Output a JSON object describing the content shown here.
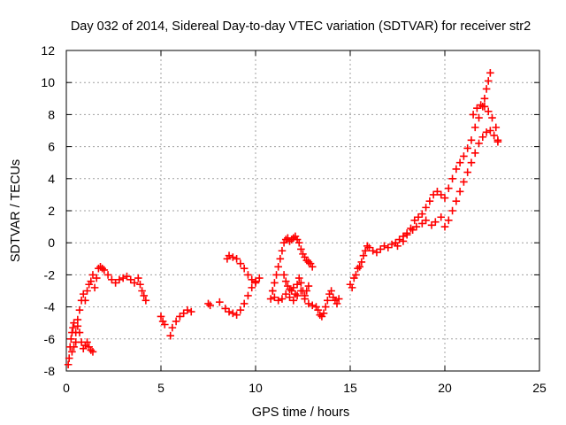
{
  "chart_data": {
    "type": "scatter",
    "title": "Day 032 of 2014, Sidereal Day-to-day VTEC variation (SDTVAR) for receiver str2",
    "xlabel": "GPS time / hours",
    "ylabel": "SDTVAR / TECUs",
    "xlim": [
      0,
      25
    ],
    "ylim": [
      -8,
      12
    ],
    "xticks": [
      "0",
      "5",
      "10",
      "15",
      "20",
      "25"
    ],
    "yticks": [
      "-8",
      "-6",
      "-4",
      "-2",
      "0",
      "2",
      "4",
      "6",
      "8",
      "10",
      "12"
    ],
    "grid": true,
    "marker": "+",
    "series": [
      {
        "name": "SDTVAR",
        "color": "#ff0000",
        "x": [
          0.1,
          0.15,
          0.2,
          0.25,
          0.3,
          0.35,
          0.4,
          0.5,
          0.6,
          0.7,
          0.8,
          0.9,
          1.0,
          1.1,
          1.2,
          1.3,
          1.4,
          1.5,
          1.6,
          1.7,
          1.8,
          1.9,
          2.0,
          2.2,
          2.4,
          2.6,
          2.8,
          3.0,
          3.2,
          3.4,
          3.6,
          3.8,
          3.9,
          4.0,
          4.1,
          4.2,
          0.6,
          0.7,
          0.8,
          0.9,
          1.0,
          1.1,
          1.2,
          1.3,
          1.4,
          0.3,
          0.4,
          0.5,
          5.0,
          5.1,
          5.2,
          5.5,
          5.6,
          5.8,
          6.0,
          6.2,
          6.4,
          6.6,
          7.5,
          7.6,
          8.1,
          8.4,
          8.6,
          8.8,
          9.0,
          9.2,
          9.4,
          9.6,
          9.8,
          10.0,
          10.2,
          8.5,
          8.6,
          8.8,
          9.0,
          9.2,
          9.4,
          9.6,
          9.8,
          10.0,
          10.8,
          10.9,
          11.0,
          11.1,
          11.2,
          11.3,
          11.4,
          11.5,
          11.6,
          11.7,
          11.8,
          11.9,
          12.0,
          12.1,
          12.2,
          12.3,
          12.4,
          12.5,
          12.6,
          12.7,
          12.8,
          12.9,
          13.0,
          10.9,
          11.0,
          11.2,
          11.4,
          11.6,
          11.8,
          12.0,
          12.2,
          12.4,
          12.6,
          12.8,
          13.0,
          13.2,
          11.5,
          11.6,
          11.7,
          11.8,
          11.9,
          12.0,
          12.1,
          12.2,
          12.3,
          12.4,
          12.5,
          12.6,
          12.7,
          12.8,
          13.3,
          13.4,
          13.5,
          13.6,
          13.7,
          13.8,
          13.9,
          14.0,
          14.1,
          14.2,
          14.3,
          14.4,
          15.0,
          15.1,
          15.2,
          15.3,
          15.4,
          15.5,
          15.6,
          15.7,
          15.8,
          15.9,
          16.0,
          16.2,
          16.4,
          16.6,
          16.8,
          17.0,
          17.2,
          17.4,
          17.6,
          17.8,
          18.0,
          18.2,
          18.4,
          18.6,
          18.8,
          19.0,
          19.2,
          19.4,
          19.6,
          19.8,
          20.0,
          20.2,
          20.4,
          20.6,
          20.8,
          21.0,
          21.2,
          21.4,
          21.6,
          21.8,
          22.0,
          22.1,
          22.2,
          22.3,
          22.4,
          17.5,
          17.8,
          18.0,
          18.3,
          18.5,
          18.8,
          19.0,
          19.3,
          19.5,
          19.8,
          20.0,
          20.2,
          20.4,
          20.6,
          20.8,
          21.0,
          21.2,
          21.4,
          21.6,
          21.8,
          22.0,
          22.2,
          22.4,
          22.6,
          22.8,
          21.5,
          21.7,
          21.9,
          22.1,
          22.3,
          22.5,
          22.7,
          22.8
        ],
        "y": [
          -7.6,
          -7.2,
          -6.5,
          -6.0,
          -5.6,
          -5.3,
          -5.0,
          -5.6,
          -4.8,
          -4.2,
          -3.6,
          -3.2,
          -3.6,
          -3.0,
          -2.6,
          -2.4,
          -2.0,
          -2.8,
          -2.2,
          -1.6,
          -1.5,
          -1.6,
          -1.7,
          -2.0,
          -2.3,
          -2.5,
          -2.3,
          -2.2,
          -2.1,
          -2.3,
          -2.5,
          -2.2,
          -2.6,
          -3.0,
          -3.3,
          -3.6,
          -5.2,
          -5.6,
          -6.2,
          -6.6,
          -6.4,
          -6.2,
          -6.5,
          -6.7,
          -6.8,
          -6.8,
          -6.5,
          -6.2,
          -4.6,
          -4.9,
          -5.1,
          -5.8,
          -5.3,
          -4.9,
          -4.6,
          -4.4,
          -4.2,
          -4.3,
          -3.8,
          -3.9,
          -3.7,
          -4.1,
          -4.3,
          -4.4,
          -4.5,
          -4.2,
          -3.8,
          -3.3,
          -2.8,
          -2.4,
          -2.2,
          -1.0,
          -0.8,
          -0.9,
          -1.0,
          -1.3,
          -1.6,
          -2.0,
          -2.3,
          -2.5,
          -3.5,
          -3.0,
          -2.5,
          -2.0,
          -1.5,
          -1.0,
          -0.5,
          0.0,
          0.2,
          0.3,
          0.1,
          0.2,
          0.3,
          0.4,
          0.2,
          0.0,
          -0.4,
          -0.7,
          -0.9,
          -1.1,
          -1.2,
          -1.3,
          -1.5,
          -3.0,
          -3.4,
          -3.6,
          -3.5,
          -3.2,
          -3.4,
          -3.6,
          -3.3,
          -3.0,
          -3.5,
          -3.8,
          -3.9,
          -4.0,
          -2.0,
          -2.4,
          -2.7,
          -2.9,
          -3.0,
          -2.8,
          -3.2,
          -2.6,
          -2.2,
          -2.5,
          -3.0,
          -3.3,
          -3.0,
          -2.7,
          -4.2,
          -4.5,
          -4.6,
          -4.4,
          -4.0,
          -3.6,
          -3.2,
          -3.0,
          -3.4,
          -3.6,
          -3.8,
          -3.5,
          -2.6,
          -2.8,
          -2.2,
          -2.0,
          -1.6,
          -1.5,
          -1.2,
          -0.8,
          -0.5,
          -0.2,
          -0.3,
          -0.5,
          -0.6,
          -0.4,
          -0.2,
          -0.3,
          -0.1,
          0.0,
          0.2,
          0.4,
          0.6,
          0.9,
          1.4,
          1.6,
          1.8,
          2.2,
          2.6,
          3.0,
          3.2,
          3.0,
          2.8,
          3.4,
          4.0,
          4.6,
          5.0,
          5.4,
          5.9,
          6.4,
          7.2,
          7.8,
          8.5,
          9.0,
          9.6,
          10.1,
          10.6,
          -0.2,
          0.1,
          0.5,
          0.8,
          1.0,
          1.2,
          1.4,
          1.1,
          1.3,
          1.6,
          1.0,
          1.4,
          2.0,
          2.6,
          3.2,
          3.8,
          4.4,
          5.0,
          5.6,
          6.2,
          6.6,
          6.9,
          7.0,
          6.7,
          6.3,
          8.0,
          8.4,
          8.6,
          8.5,
          8.2,
          7.8,
          7.2,
          6.4
        ]
      }
    ]
  }
}
